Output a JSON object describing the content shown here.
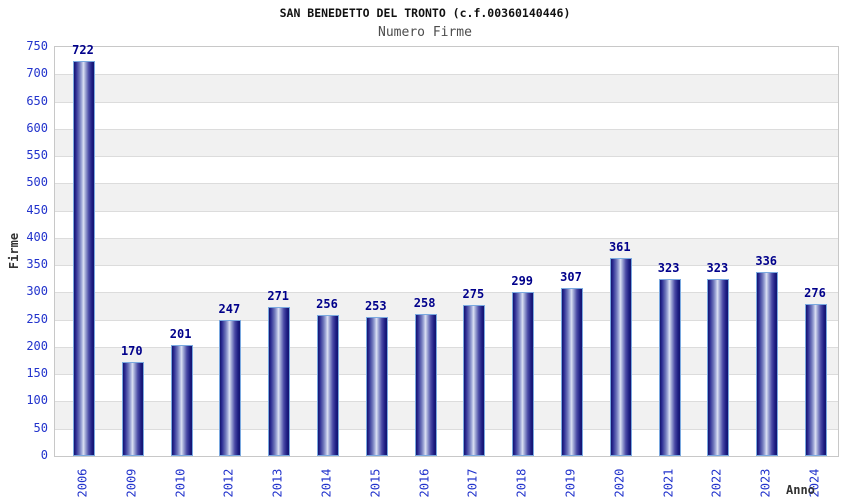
{
  "header": {
    "title": "SAN BENEDETTO DEL TRONTO (c.f.00360140446)",
    "subtitle": "Numero Firme"
  },
  "chart_data": {
    "type": "bar",
    "title": "SAN BENEDETTO DEL TRONTO (c.f.00360140446)",
    "subtitle": "Numero Firme",
    "xlabel": "Anno",
    "ylabel": "Firme",
    "categories": [
      "2006",
      "2009",
      "2010",
      "2012",
      "2013",
      "2014",
      "2015",
      "2016",
      "2017",
      "2018",
      "2019",
      "2020",
      "2021",
      "2022",
      "2023",
      "2024"
    ],
    "values": [
      722,
      170,
      201,
      247,
      271,
      256,
      253,
      258,
      275,
      299,
      307,
      361,
      323,
      323,
      336,
      276
    ],
    "ylim": [
      0,
      750
    ],
    "yticks": [
      0,
      50,
      100,
      150,
      200,
      250,
      300,
      350,
      400,
      450,
      500,
      550,
      600,
      650,
      700,
      750
    ],
    "grid": "horizontal gridlines every 50 with alternating white/gray bands",
    "legend": "none",
    "bar_labels_shown": true
  },
  "colors": {
    "tick_label": "#2233cc",
    "value_label": "#00008b",
    "axis_title": "#333333",
    "band_gray": "#f1f1f1",
    "gridline": "#dcdcdc",
    "plot_border": "#c8c8c8",
    "bar_border": "#7aa9e0",
    "bar_dark": "#13136f",
    "bar_highlight": "#dde2f4"
  }
}
